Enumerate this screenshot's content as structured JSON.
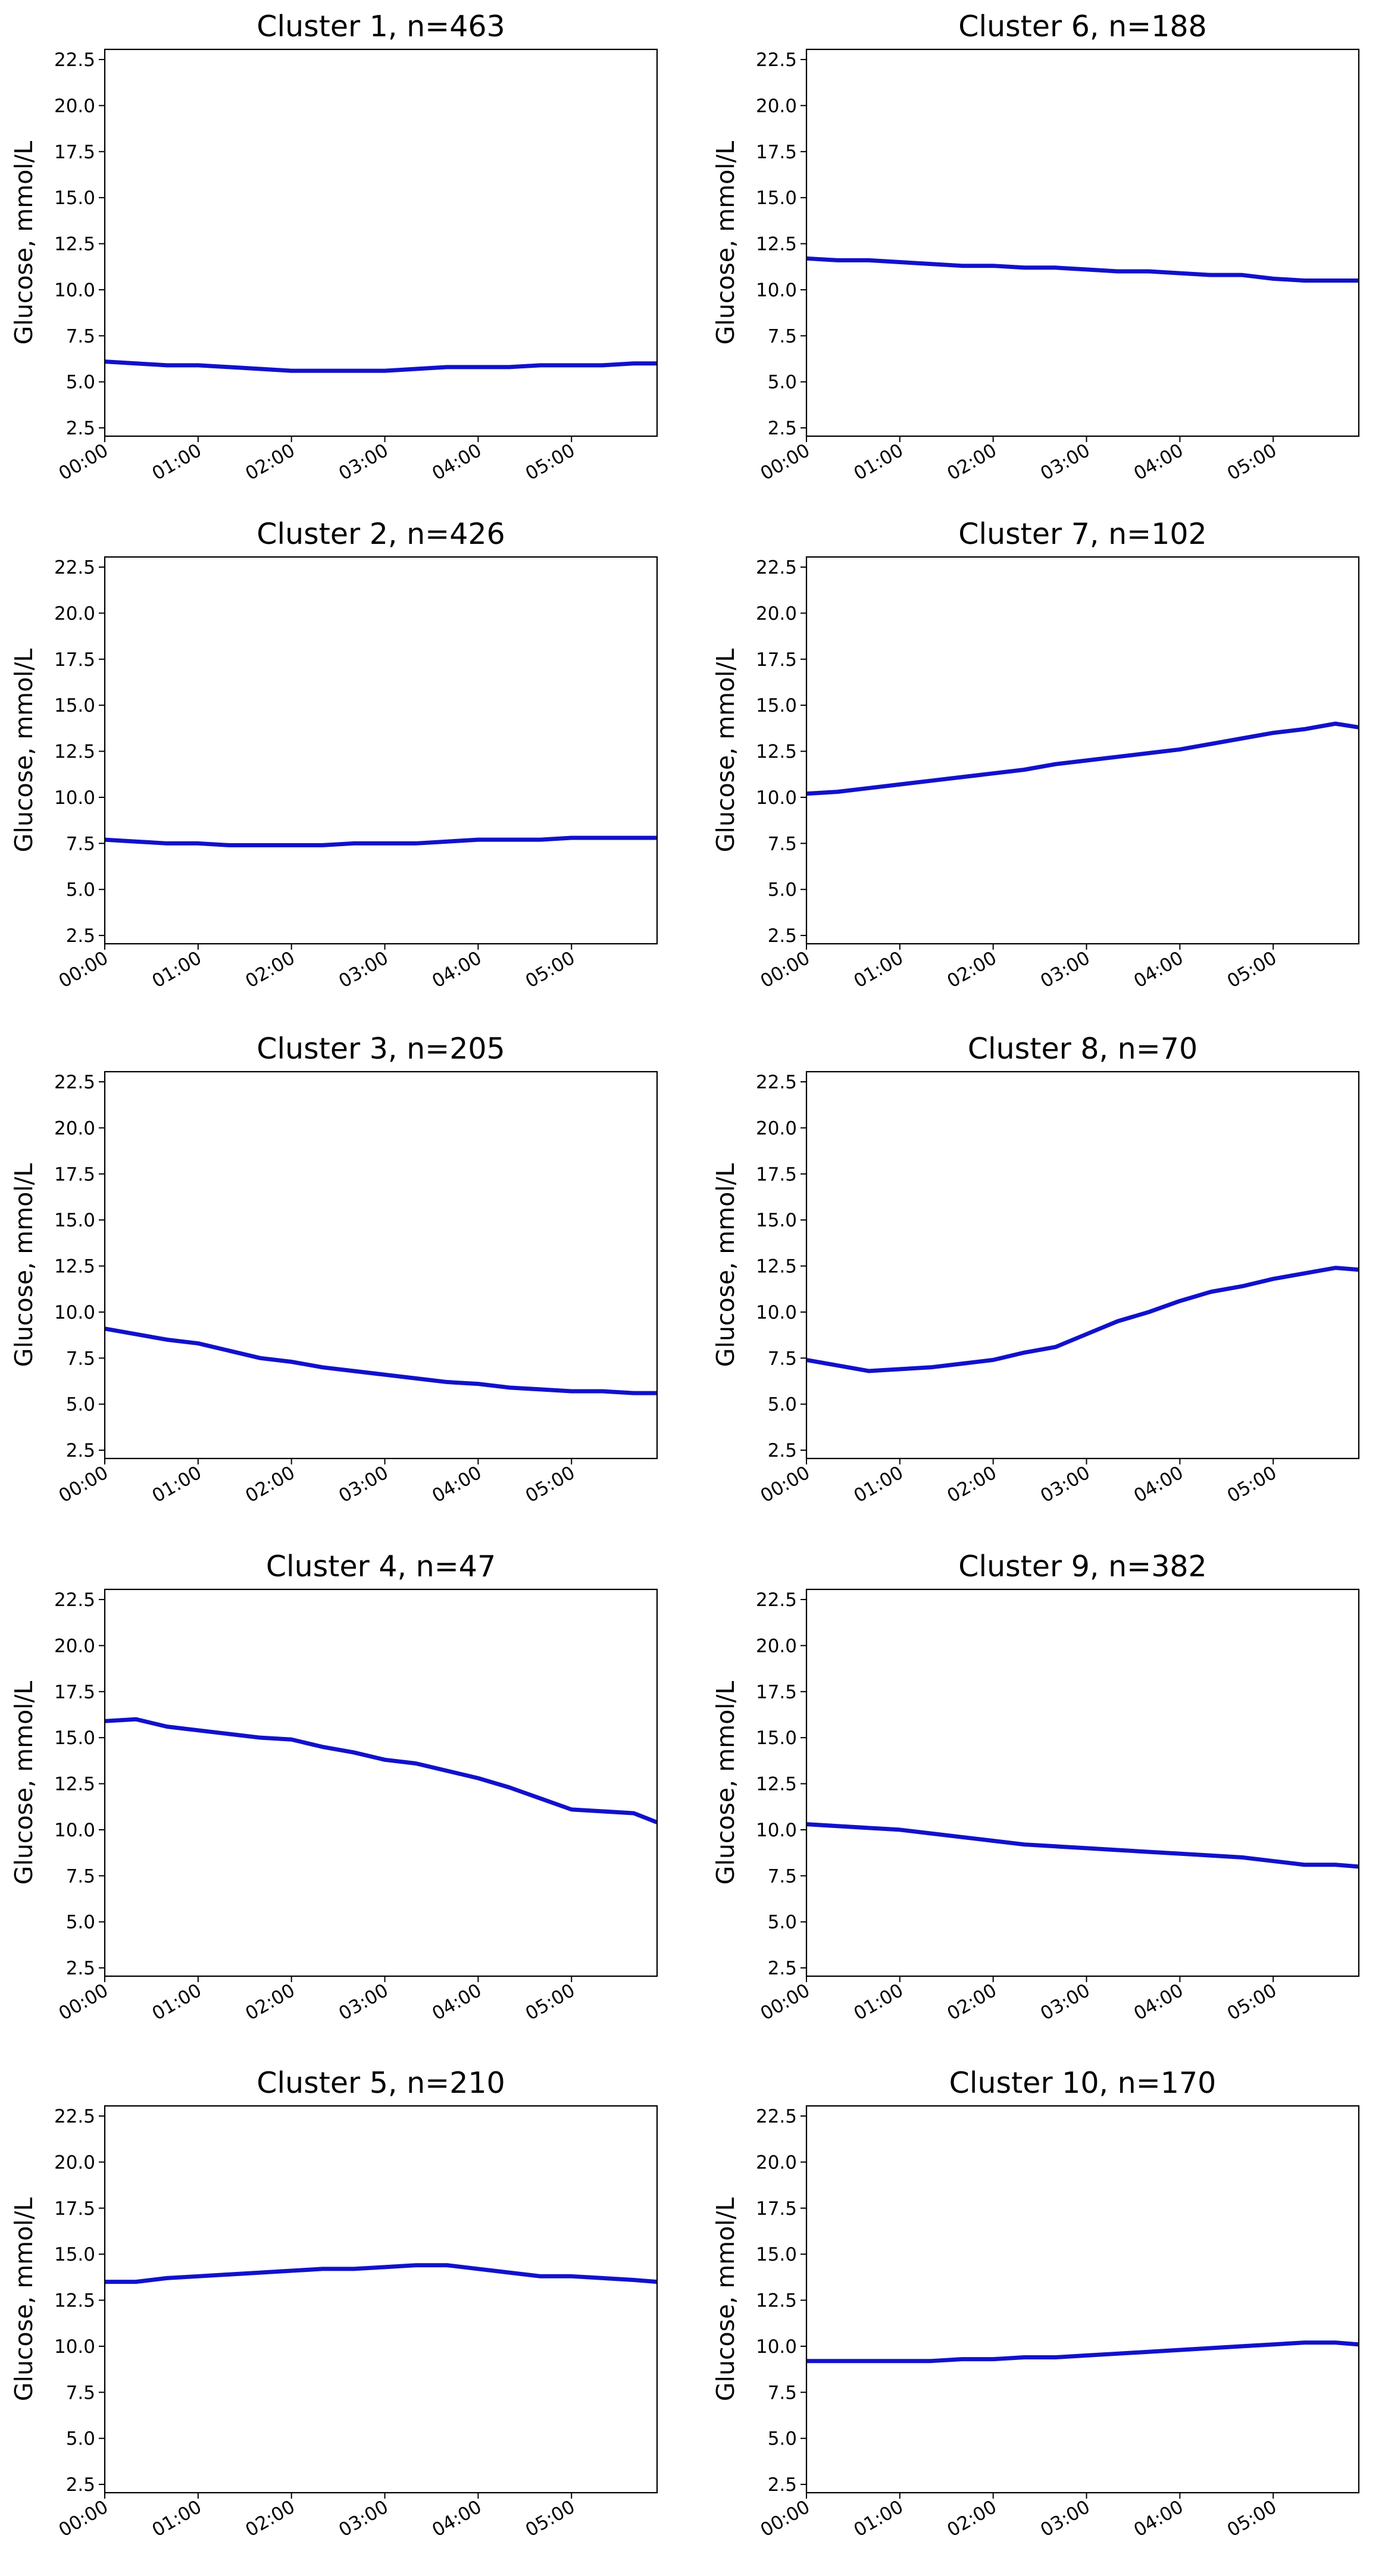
{
  "chart_data": [
    {
      "type": "line",
      "title": "Cluster 1, n=463",
      "y_label": "Glucose, mmol/L",
      "color": "#1111cc",
      "x": [
        0,
        20,
        40,
        60,
        80,
        100,
        120,
        140,
        160,
        180,
        200,
        220,
        240,
        260,
        280,
        300,
        320,
        340,
        355
      ],
      "values": [
        6.1,
        6.0,
        5.9,
        5.9,
        5.8,
        5.7,
        5.6,
        5.6,
        5.6,
        5.6,
        5.7,
        5.8,
        5.8,
        5.8,
        5.9,
        5.9,
        5.9,
        6.0,
        6.0
      ],
      "xlim": [
        0,
        355
      ],
      "ylim": [
        2.05,
        23.05
      ],
      "xticks": [
        {
          "value": 0,
          "label": "00:00"
        },
        {
          "value": 60,
          "label": "01:00"
        },
        {
          "value": 120,
          "label": "02:00"
        },
        {
          "value": 180,
          "label": "03:00"
        },
        {
          "value": 240,
          "label": "04:00"
        },
        {
          "value": 300,
          "label": "05:00"
        }
      ],
      "yticks": [
        2.5,
        {
          "value": 5,
          "label": "5.0"
        },
        7.5,
        {
          "value": 10,
          "label": "10.0"
        },
        12.5,
        {
          "value": 15,
          "label": "15.0"
        },
        17.5,
        {
          "value": 20,
          "label": "20.0"
        },
        22.5
      ]
    },
    {
      "type": "line",
      "title": "Cluster 2, n=426",
      "y_label": "Glucose, mmol/L",
      "color": "#1111cc",
      "x": [
        0,
        20,
        40,
        60,
        80,
        100,
        120,
        140,
        160,
        180,
        200,
        220,
        240,
        260,
        280,
        300,
        320,
        340,
        355
      ],
      "values": [
        7.7,
        7.6,
        7.5,
        7.5,
        7.4,
        7.4,
        7.4,
        7.4,
        7.5,
        7.5,
        7.5,
        7.6,
        7.7,
        7.7,
        7.7,
        7.8,
        7.8,
        7.8,
        7.8
      ],
      "xlim": [
        0,
        355
      ],
      "ylim": [
        2.05,
        23.05
      ],
      "xticks": [
        {
          "value": 0,
          "label": "00:00"
        },
        {
          "value": 60,
          "label": "01:00"
        },
        {
          "value": 120,
          "label": "02:00"
        },
        {
          "value": 180,
          "label": "03:00"
        },
        {
          "value": 240,
          "label": "04:00"
        },
        {
          "value": 300,
          "label": "05:00"
        }
      ],
      "yticks": [
        2.5,
        {
          "value": 5,
          "label": "5.0"
        },
        7.5,
        {
          "value": 10,
          "label": "10.0"
        },
        12.5,
        {
          "value": 15,
          "label": "15.0"
        },
        17.5,
        {
          "value": 20,
          "label": "20.0"
        },
        22.5
      ]
    },
    {
      "type": "line",
      "title": "Cluster 3, n=205",
      "y_label": "Glucose, mmol/L",
      "color": "#1111cc",
      "x": [
        0,
        20,
        40,
        60,
        80,
        100,
        120,
        140,
        160,
        180,
        200,
        220,
        240,
        260,
        280,
        300,
        320,
        340,
        355
      ],
      "values": [
        9.1,
        8.8,
        8.5,
        8.3,
        7.9,
        7.5,
        7.3,
        7.0,
        6.8,
        6.6,
        6.4,
        6.2,
        6.1,
        5.9,
        5.8,
        5.7,
        5.7,
        5.6,
        5.6
      ],
      "xlim": [
        0,
        355
      ],
      "ylim": [
        2.05,
        23.05
      ],
      "xticks": [
        {
          "value": 0,
          "label": "00:00"
        },
        {
          "value": 60,
          "label": "01:00"
        },
        {
          "value": 120,
          "label": "02:00"
        },
        {
          "value": 180,
          "label": "03:00"
        },
        {
          "value": 240,
          "label": "04:00"
        },
        {
          "value": 300,
          "label": "05:00"
        }
      ],
      "yticks": [
        2.5,
        {
          "value": 5,
          "label": "5.0"
        },
        7.5,
        {
          "value": 10,
          "label": "10.0"
        },
        12.5,
        {
          "value": 15,
          "label": "15.0"
        },
        17.5,
        {
          "value": 20,
          "label": "20.0"
        },
        22.5
      ]
    },
    {
      "type": "line",
      "title": "Cluster 4, n=47",
      "y_label": "Glucose, mmol/L",
      "color": "#1111cc",
      "x": [
        0,
        20,
        40,
        60,
        80,
        100,
        120,
        140,
        160,
        180,
        200,
        220,
        240,
        260,
        280,
        300,
        320,
        340,
        355
      ],
      "values": [
        15.9,
        16.0,
        15.6,
        15.4,
        15.2,
        15.0,
        14.9,
        14.5,
        14.2,
        13.8,
        13.6,
        13.2,
        12.8,
        12.3,
        11.7,
        11.1,
        11.0,
        10.9,
        10.4
      ],
      "xlim": [
        0,
        355
      ],
      "ylim": [
        2.05,
        23.05
      ],
      "xticks": [
        {
          "value": 0,
          "label": "00:00"
        },
        {
          "value": 60,
          "label": "01:00"
        },
        {
          "value": 120,
          "label": "02:00"
        },
        {
          "value": 180,
          "label": "03:00"
        },
        {
          "value": 240,
          "label": "04:00"
        },
        {
          "value": 300,
          "label": "05:00"
        }
      ],
      "yticks": [
        2.5,
        {
          "value": 5,
          "label": "5.0"
        },
        7.5,
        {
          "value": 10,
          "label": "10.0"
        },
        12.5,
        {
          "value": 15,
          "label": "15.0"
        },
        17.5,
        {
          "value": 20,
          "label": "20.0"
        },
        22.5
      ]
    },
    {
      "type": "line",
      "title": "Cluster 5, n=210",
      "y_label": "Glucose, mmol/L",
      "color": "#1111cc",
      "x": [
        0,
        20,
        40,
        60,
        80,
        100,
        120,
        140,
        160,
        180,
        200,
        220,
        240,
        260,
        280,
        300,
        320,
        340,
        355
      ],
      "values": [
        13.5,
        13.5,
        13.7,
        13.8,
        13.9,
        14.0,
        14.1,
        14.2,
        14.2,
        14.3,
        14.4,
        14.4,
        14.2,
        14.0,
        13.8,
        13.8,
        13.7,
        13.6,
        13.5
      ],
      "xlim": [
        0,
        355
      ],
      "ylim": [
        2.05,
        23.05
      ],
      "xticks": [
        {
          "value": 0,
          "label": "00:00"
        },
        {
          "value": 60,
          "label": "01:00"
        },
        {
          "value": 120,
          "label": "02:00"
        },
        {
          "value": 180,
          "label": "03:00"
        },
        {
          "value": 240,
          "label": "04:00"
        },
        {
          "value": 300,
          "label": "05:00"
        }
      ],
      "yticks": [
        2.5,
        {
          "value": 5,
          "label": "5.0"
        },
        7.5,
        {
          "value": 10,
          "label": "10.0"
        },
        12.5,
        {
          "value": 15,
          "label": "15.0"
        },
        17.5,
        {
          "value": 20,
          "label": "20.0"
        },
        22.5
      ]
    },
    {
      "type": "line",
      "title": "Cluster 6, n=188",
      "y_label": "Glucose, mmol/L",
      "color": "#1111cc",
      "x": [
        0,
        20,
        40,
        60,
        80,
        100,
        120,
        140,
        160,
        180,
        200,
        220,
        240,
        260,
        280,
        300,
        320,
        340,
        355
      ],
      "values": [
        11.7,
        11.6,
        11.6,
        11.5,
        11.4,
        11.3,
        11.3,
        11.2,
        11.2,
        11.1,
        11.0,
        11.0,
        10.9,
        10.8,
        10.8,
        10.6,
        10.5,
        10.5,
        10.5
      ],
      "xlim": [
        0,
        355
      ],
      "ylim": [
        2.05,
        23.05
      ],
      "xticks": [
        {
          "value": 0,
          "label": "00:00"
        },
        {
          "value": 60,
          "label": "01:00"
        },
        {
          "value": 120,
          "label": "02:00"
        },
        {
          "value": 180,
          "label": "03:00"
        },
        {
          "value": 240,
          "label": "04:00"
        },
        {
          "value": 300,
          "label": "05:00"
        }
      ],
      "yticks": [
        2.5,
        {
          "value": 5,
          "label": "5.0"
        },
        7.5,
        {
          "value": 10,
          "label": "10.0"
        },
        12.5,
        {
          "value": 15,
          "label": "15.0"
        },
        17.5,
        {
          "value": 20,
          "label": "20.0"
        },
        22.5
      ]
    },
    {
      "type": "line",
      "title": "Cluster 7, n=102",
      "y_label": "Glucose, mmol/L",
      "color": "#1111cc",
      "x": [
        0,
        20,
        40,
        60,
        80,
        100,
        120,
        140,
        160,
        180,
        200,
        220,
        240,
        260,
        280,
        300,
        320,
        340,
        355
      ],
      "values": [
        10.2,
        10.3,
        10.5,
        10.7,
        10.9,
        11.1,
        11.3,
        11.5,
        11.8,
        12.0,
        12.2,
        12.4,
        12.6,
        12.9,
        13.2,
        13.5,
        13.7,
        14.0,
        13.8
      ],
      "xlim": [
        0,
        355
      ],
      "ylim": [
        2.05,
        23.05
      ],
      "xticks": [
        {
          "value": 0,
          "label": "00:00"
        },
        {
          "value": 60,
          "label": "01:00"
        },
        {
          "value": 120,
          "label": "02:00"
        },
        {
          "value": 180,
          "label": "03:00"
        },
        {
          "value": 240,
          "label": "04:00"
        },
        {
          "value": 300,
          "label": "05:00"
        }
      ],
      "yticks": [
        2.5,
        {
          "value": 5,
          "label": "5.0"
        },
        7.5,
        {
          "value": 10,
          "label": "10.0"
        },
        12.5,
        {
          "value": 15,
          "label": "15.0"
        },
        17.5,
        {
          "value": 20,
          "label": "20.0"
        },
        22.5
      ]
    },
    {
      "type": "line",
      "title": "Cluster 8, n=70",
      "y_label": "Glucose, mmol/L",
      "color": "#1111cc",
      "x": [
        0,
        20,
        40,
        60,
        80,
        100,
        120,
        140,
        160,
        180,
        200,
        220,
        240,
        260,
        280,
        300,
        320,
        340,
        355
      ],
      "values": [
        7.4,
        7.1,
        6.8,
        6.9,
        7.0,
        7.2,
        7.4,
        7.8,
        8.1,
        8.8,
        9.5,
        10.0,
        10.6,
        11.1,
        11.4,
        11.8,
        12.1,
        12.4,
        12.3
      ],
      "xlim": [
        0,
        355
      ],
      "ylim": [
        2.05,
        23.05
      ],
      "xticks": [
        {
          "value": 0,
          "label": "00:00"
        },
        {
          "value": 60,
          "label": "01:00"
        },
        {
          "value": 120,
          "label": "02:00"
        },
        {
          "value": 180,
          "label": "03:00"
        },
        {
          "value": 240,
          "label": "04:00"
        },
        {
          "value": 300,
          "label": "05:00"
        }
      ],
      "yticks": [
        2.5,
        {
          "value": 5,
          "label": "5.0"
        },
        7.5,
        {
          "value": 10,
          "label": "10.0"
        },
        12.5,
        {
          "value": 15,
          "label": "15.0"
        },
        17.5,
        {
          "value": 20,
          "label": "20.0"
        },
        22.5
      ]
    },
    {
      "type": "line",
      "title": "Cluster 9, n=382",
      "y_label": "Glucose, mmol/L",
      "color": "#1111cc",
      "x": [
        0,
        20,
        40,
        60,
        80,
        100,
        120,
        140,
        160,
        180,
        200,
        220,
        240,
        260,
        280,
        300,
        320,
        340,
        355
      ],
      "values": [
        10.3,
        10.2,
        10.1,
        10.0,
        9.8,
        9.6,
        9.4,
        9.2,
        9.1,
        9.0,
        8.9,
        8.8,
        8.7,
        8.6,
        8.5,
        8.3,
        8.1,
        8.1,
        8.0
      ],
      "xlim": [
        0,
        355
      ],
      "ylim": [
        2.05,
        23.05
      ],
      "xticks": [
        {
          "value": 0,
          "label": "00:00"
        },
        {
          "value": 60,
          "label": "01:00"
        },
        {
          "value": 120,
          "label": "02:00"
        },
        {
          "value": 180,
          "label": "03:00"
        },
        {
          "value": 240,
          "label": "04:00"
        },
        {
          "value": 300,
          "label": "05:00"
        }
      ],
      "yticks": [
        2.5,
        {
          "value": 5,
          "label": "5.0"
        },
        7.5,
        {
          "value": 10,
          "label": "10.0"
        },
        12.5,
        {
          "value": 15,
          "label": "15.0"
        },
        17.5,
        {
          "value": 20,
          "label": "20.0"
        },
        22.5
      ]
    },
    {
      "type": "line",
      "title": "Cluster 10, n=170",
      "y_label": "Glucose, mmol/L",
      "color": "#1111cc",
      "x": [
        0,
        20,
        40,
        60,
        80,
        100,
        120,
        140,
        160,
        180,
        200,
        220,
        240,
        260,
        280,
        300,
        320,
        340,
        355
      ],
      "values": [
        9.2,
        9.2,
        9.2,
        9.2,
        9.2,
        9.3,
        9.3,
        9.4,
        9.4,
        9.5,
        9.6,
        9.7,
        9.8,
        9.9,
        10.0,
        10.1,
        10.2,
        10.2,
        10.1
      ],
      "xlim": [
        0,
        355
      ],
      "ylim": [
        2.05,
        23.05
      ],
      "xticks": [
        {
          "value": 0,
          "label": "00:00"
        },
        {
          "value": 60,
          "label": "01:00"
        },
        {
          "value": 120,
          "label": "02:00"
        },
        {
          "value": 180,
          "label": "03:00"
        },
        {
          "value": 240,
          "label": "04:00"
        },
        {
          "value": 300,
          "label": "05:00"
        }
      ],
      "yticks": [
        2.5,
        {
          "value": 5,
          "label": "5.0"
        },
        7.5,
        {
          "value": 10,
          "label": "10.0"
        },
        12.5,
        {
          "value": 15,
          "label": "15.0"
        },
        17.5,
        {
          "value": 20,
          "label": "20.0"
        },
        22.5
      ]
    }
  ]
}
